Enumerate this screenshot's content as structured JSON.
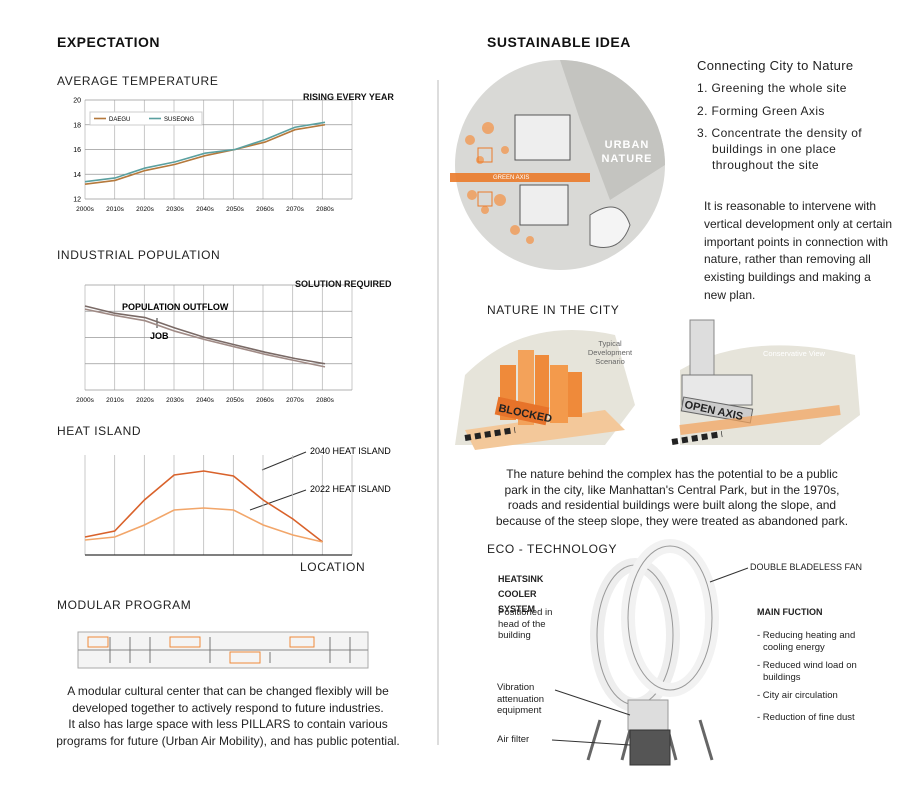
{
  "left": {
    "title": "EXPECTATION",
    "temperature": {
      "type": "line",
      "title": "AVERAGE TEMPERATURE",
      "annotation": "RISING EVERY YEAR",
      "categories": [
        "2000s",
        "2010s",
        "2020s",
        "2030s",
        "2040s",
        "2050s",
        "2060s",
        "2070s",
        "2080s"
      ],
      "series": [
        {
          "name": "DAEGU",
          "color": "#b5793c",
          "values": [
            13.2,
            13.5,
            14.3,
            14.8,
            15.5,
            16.0,
            16.6,
            17.6,
            18.0
          ]
        },
        {
          "name": "SUSEONG",
          "color": "#5aa0a0",
          "values": [
            13.4,
            13.7,
            14.5,
            15.0,
            15.7,
            16.0,
            16.8,
            17.8,
            18.2
          ]
        }
      ],
      "ylim": [
        12,
        20
      ],
      "yticks": [
        12,
        14,
        16,
        18,
        20
      ]
    },
    "population": {
      "type": "line",
      "title": "INDUSTRIAL POPULATION",
      "annotation": "SOLUTION REQUIRED",
      "categories": [
        "2000s",
        "2010s",
        "2020s",
        "2030s",
        "2040s",
        "2050s",
        "2060s",
        "2070s",
        "2080s"
      ],
      "series": [
        {
          "name": "POPULATION OUTFLOW",
          "color": "#7a6a66",
          "values": [
            80,
            73,
            69,
            59,
            50,
            43,
            36,
            30,
            25
          ]
        },
        {
          "name": "JOB",
          "color": "#a08b86",
          "values": [
            77,
            71,
            66,
            56,
            48,
            41,
            34,
            28,
            22
          ]
        }
      ],
      "ylim": [
        0,
        100
      ],
      "yticks": [
        0,
        25,
        50,
        75,
        100
      ]
    },
    "heat_island": {
      "type": "line",
      "title": "HEAT ISLAND",
      "x_label": "LOCATION",
      "series": [
        {
          "name": "2040 HEAT ISLAND",
          "color": "#d9622b",
          "values": [
            18,
            24,
            55,
            80,
            84,
            79,
            55,
            36,
            13
          ]
        },
        {
          "name": "2022 HEAT ISLAND",
          "color": "#f2a66a",
          "values": [
            15,
            18,
            30,
            45,
            47,
            45,
            30,
            20,
            13
          ]
        }
      ],
      "ylim": [
        0,
        100
      ]
    },
    "modular": {
      "title": "MODULAR PROGRAM",
      "lines": [
        "A modular cultural center that can be changed flexibly will be",
        "developed together to actively respond to future industries.",
        "It also has large space with less PILLARS to contain various",
        "programs for future (Urban Air Mobility), and has public potential."
      ]
    }
  },
  "right": {
    "title": "SUSTAINABLE IDEA",
    "connecting": {
      "title": "Connecting City to Nature",
      "items": [
        "1. Greening the whole site",
        "2. Forming Green Axis",
        "3. Concentrate the density of buildings in one place throughout the site"
      ]
    },
    "intro": [
      "It is reasonable to intervene with",
      "vertical development only at certain",
      "important points in connection with",
      "nature, rather than removing all",
      "existing buildings and making a",
      "new plan."
    ],
    "image_labels": {
      "urban_nature": "URBAN NATURE",
      "green_axis": "GREEN AXIS"
    },
    "nature": {
      "title": "NATURE IN THE CITY",
      "labels": {
        "typical": "Typical Development Scenario",
        "blocked": "BLOCKED",
        "conservative": "Conservative View",
        "open_axis": "OPEN AXIS"
      },
      "lines": [
        "The nature behind the complex has the potential to be a public",
        "park in the city, like Manhattan's Central Park, but in the 1970s,",
        "roads and residential buildings were built along the slope, and",
        "because of the steep slope, they were treated as abandoned park."
      ]
    },
    "eco": {
      "title": "ECO - TECHNOLOGY",
      "heatsink": "HEATSINK COOLER SYSTEM",
      "positioned": "Positioned in head of the building",
      "fan": "DOUBLE BLADELESS FAN",
      "main_title": "MAIN FUCTION",
      "main": [
        "- Reducing heating and cooling energy",
        "- Reduced wind load on buildings",
        "- City air circulation",
        "- Reduction of fine dust"
      ],
      "vibration": "Vibration attenuation equipment",
      "filter": "Air filter"
    }
  }
}
